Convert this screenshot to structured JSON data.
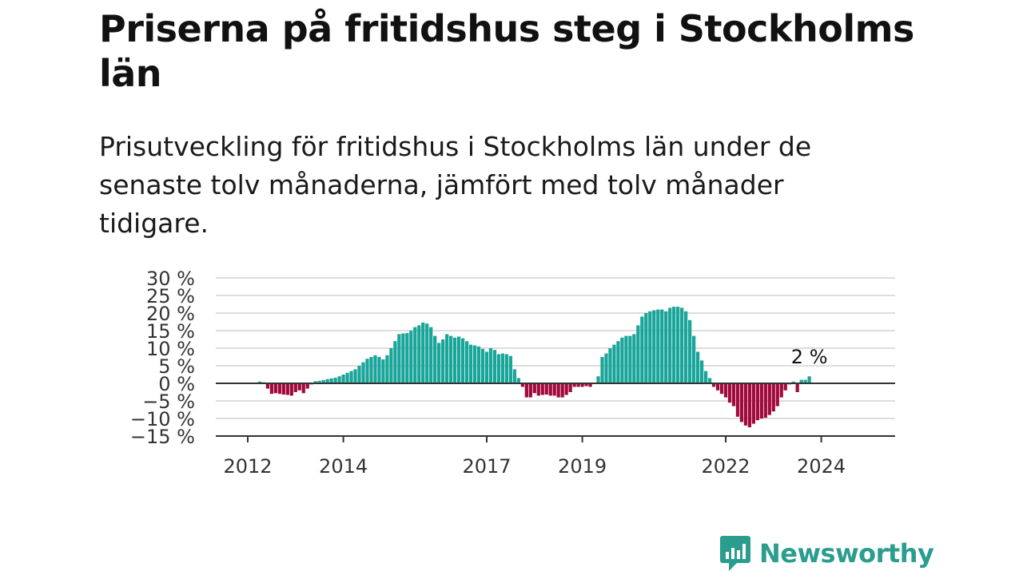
{
  "title": "Priserna på fritidshus steg i Stockholms län",
  "subtitle": "Prisutveckling för fritidshus i Stockholms län under de senaste tolv månaderna, jämfört med tolv månader tidigare.",
  "logo": {
    "text": "Newsworthy",
    "icon": "newsworthy-logo-icon"
  },
  "colors": {
    "positive": "#1aa59a",
    "negative": "#a10a3c",
    "grid": "#dddddd",
    "zero_line": "#333333",
    "logo": "#2a9d8f"
  },
  "chart_data": {
    "type": "bar",
    "title": "",
    "xlabel": "",
    "ylabel": "",
    "ylim": [
      -15,
      30
    ],
    "y_ticks": [
      "30 %",
      "25 %",
      "20 %",
      "15 %",
      "10 %",
      "5 %",
      "0 %",
      "−5 %",
      "−10 %",
      "−15 %"
    ],
    "y_tick_values": [
      30,
      25,
      20,
      15,
      10,
      5,
      0,
      -5,
      -10,
      -15
    ],
    "x_ticks": [
      "2012",
      "2014",
      "2017",
      "2019",
      "2022",
      "2024"
    ],
    "grid": true,
    "series_start": "2012-04",
    "interval": "month",
    "annotation": {
      "text": "2 %"
    },
    "values": [
      0.5,
      0.3,
      -1.5,
      -3.0,
      -2.8,
      -3.0,
      -3.2,
      -3.3,
      -3.5,
      -2.5,
      -2.0,
      -2.8,
      -1.5,
      -0.3,
      0.6,
      0.7,
      0.9,
      1.2,
      1.4,
      1.6,
      2.0,
      2.5,
      3.0,
      3.5,
      4.0,
      5.0,
      6.0,
      7.0,
      7.5,
      8.0,
      7.5,
      6.8,
      8.0,
      10.0,
      12.0,
      14.0,
      14.2,
      14.3,
      15.0,
      16.0,
      16.5,
      17.3,
      17.0,
      16.0,
      13.5,
      11.5,
      12.5,
      14.0,
      13.5,
      13.0,
      13.3,
      12.8,
      12.0,
      11.0,
      10.8,
      10.5,
      9.8,
      9.0,
      10.0,
      9.5,
      8.3,
      8.5,
      8.3,
      7.8,
      4.0,
      1.5,
      -1.0,
      -4.0,
      -4.0,
      -2.8,
      -3.5,
      -3.3,
      -3.2,
      -3.5,
      -3.5,
      -4.0,
      -4.0,
      -3.3,
      -2.5,
      -1.0,
      -1.0,
      -1.0,
      -0.8,
      -1.0,
      0.2,
      2.0,
      7.5,
      8.5,
      10.0,
      11.0,
      12.0,
      13.0,
      13.5,
      13.5,
      14.0,
      16.5,
      19.0,
      20.0,
      20.5,
      20.8,
      21.0,
      21.0,
      20.5,
      21.5,
      21.8,
      21.8,
      21.5,
      20.5,
      18.0,
      13.5,
      9.0,
      6.5,
      3.5,
      1.5,
      -1.0,
      -2.0,
      -3.0,
      -4.0,
      -5.5,
      -6.5,
      -9.5,
      -11.0,
      -12.0,
      -12.5,
      -11.5,
      -10.5,
      -10.0,
      -9.8,
      -9.0,
      -8.0,
      -6.5,
      -4.0,
      -2.0,
      -0.3,
      0.5,
      -2.5,
      1.0,
      1.0,
      2.0
    ]
  }
}
